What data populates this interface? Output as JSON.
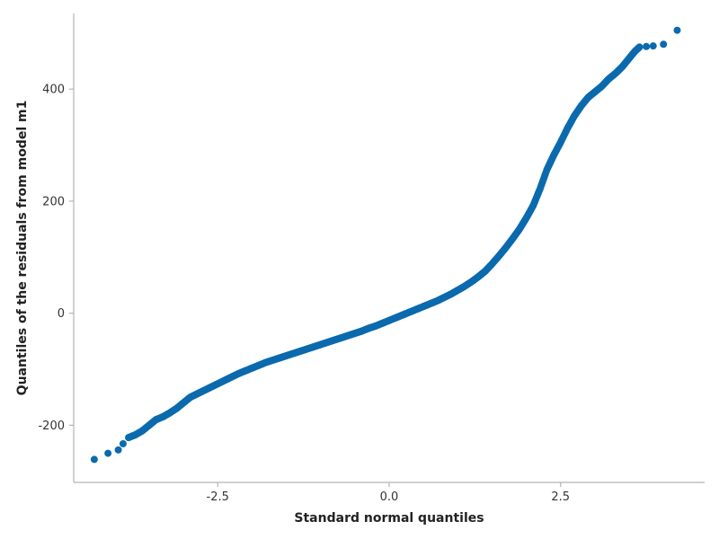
{
  "chart_data": {
    "type": "scatter",
    "title": "",
    "xlabel": "Standard normal quantiles",
    "ylabel": "Quantiles of the residuals from model m1",
    "xlim": [
      -4.6,
      4.6
    ],
    "ylim": [
      -302,
      535
    ],
    "x_ticks": [
      -2.5,
      0.0,
      2.5
    ],
    "x_tick_labels": [
      "-2.5",
      "0.0",
      "2.5"
    ],
    "y_ticks": [
      -200,
      0,
      200,
      400
    ],
    "y_tick_labels": [
      "-200",
      "0",
      "200",
      "400"
    ],
    "grid": false,
    "point_color": "#0b6aad",
    "series": [
      {
        "points": [
          [
            -4.3,
            -261
          ],
          [
            -4.1,
            -250
          ],
          [
            -3.95,
            -244
          ],
          [
            -3.88,
            -233
          ],
          [
            -3.8,
            -222
          ],
          [
            -3.7,
            -217
          ],
          [
            -3.6,
            -210
          ],
          [
            -3.5,
            -200
          ],
          [
            -3.4,
            -190
          ],
          [
            -3.3,
            -185
          ],
          [
            -3.2,
            -178
          ],
          [
            -3.1,
            -170
          ],
          [
            -3.0,
            -160
          ],
          [
            -2.9,
            -150
          ],
          [
            -2.8,
            -144
          ],
          [
            -2.7,
            -138
          ],
          [
            -2.6,
            -132
          ],
          [
            -2.5,
            -126
          ],
          [
            -2.4,
            -120
          ],
          [
            -2.3,
            -114
          ],
          [
            -2.2,
            -108
          ],
          [
            -2.1,
            -103
          ],
          [
            -2.0,
            -98
          ],
          [
            -1.9,
            -93
          ],
          [
            -1.8,
            -88
          ],
          [
            -1.7,
            -84
          ],
          [
            -1.6,
            -80
          ],
          [
            -1.5,
            -76
          ],
          [
            -1.4,
            -72
          ],
          [
            -1.3,
            -68
          ],
          [
            -1.2,
            -64
          ],
          [
            -1.1,
            -60
          ],
          [
            -1.0,
            -56
          ],
          [
            -0.9,
            -52
          ],
          [
            -0.8,
            -48
          ],
          [
            -0.7,
            -44
          ],
          [
            -0.6,
            -40
          ],
          [
            -0.5,
            -36
          ],
          [
            -0.4,
            -32
          ],
          [
            -0.3,
            -27
          ],
          [
            -0.2,
            -23
          ],
          [
            -0.1,
            -18
          ],
          [
            0.0,
            -13
          ],
          [
            0.1,
            -8
          ],
          [
            0.2,
            -3
          ],
          [
            0.3,
            2
          ],
          [
            0.4,
            7
          ],
          [
            0.5,
            12
          ],
          [
            0.6,
            17
          ],
          [
            0.7,
            22
          ],
          [
            0.8,
            28
          ],
          [
            0.9,
            34
          ],
          [
            1.0,
            41
          ],
          [
            1.1,
            48
          ],
          [
            1.2,
            56
          ],
          [
            1.3,
            65
          ],
          [
            1.4,
            75
          ],
          [
            1.5,
            88
          ],
          [
            1.6,
            102
          ],
          [
            1.7,
            117
          ],
          [
            1.8,
            133
          ],
          [
            1.9,
            150
          ],
          [
            2.0,
            170
          ],
          [
            2.1,
            192
          ],
          [
            2.2,
            222
          ],
          [
            2.3,
            256
          ],
          [
            2.4,
            282
          ],
          [
            2.5,
            305
          ],
          [
            2.6,
            330
          ],
          [
            2.7,
            352
          ],
          [
            2.8,
            370
          ],
          [
            2.9,
            385
          ],
          [
            3.0,
            395
          ],
          [
            3.1,
            405
          ],
          [
            3.2,
            418
          ],
          [
            3.3,
            428
          ],
          [
            3.4,
            440
          ],
          [
            3.5,
            455
          ],
          [
            3.58,
            467
          ],
          [
            3.65,
            475
          ],
          [
            3.75,
            476
          ],
          [
            3.85,
            477
          ],
          [
            4.0,
            480
          ],
          [
            4.2,
            505
          ]
        ]
      }
    ]
  }
}
